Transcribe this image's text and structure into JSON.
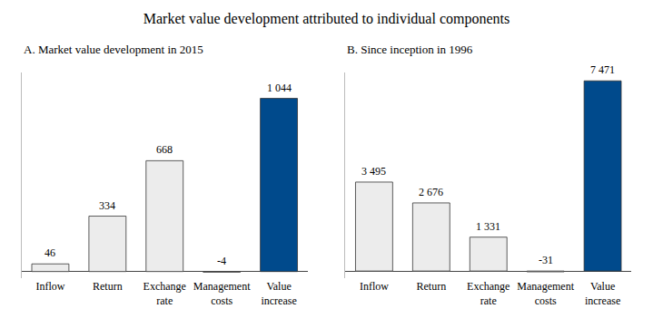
{
  "title": "Market value development attributed to individual components",
  "chart_data": [
    {
      "type": "bar",
      "title": "A. Market value development in 2015",
      "categories": [
        "Inflow",
        "Return",
        "Exchange rate",
        "Management costs",
        "Value increase"
      ],
      "values": [
        46,
        334,
        668,
        -4,
        1044
      ],
      "value_labels": [
        "46",
        "334",
        "668",
        "-4",
        "1 044"
      ],
      "colors": [
        "#ececec",
        "#ececec",
        "#ececec",
        "#ececec",
        "#004a8c"
      ],
      "ylim": [
        -40,
        1200
      ],
      "data_labels": true,
      "tick_labels": "x",
      "grid": false
    },
    {
      "type": "bar",
      "title": "B. Since inception in 1996",
      "categories": [
        "Inflow",
        "Return",
        "Exchange rate",
        "Management costs",
        "Value increase"
      ],
      "values": [
        3495,
        2676,
        1331,
        -31,
        7471
      ],
      "value_labels": [
        "3 495",
        "2 676",
        "1 331",
        "-31",
        "7 471"
      ],
      "colors": [
        "#ececec",
        "#ececec",
        "#ececec",
        "#ececec",
        "#004a8c"
      ],
      "ylim": [
        -280,
        7800
      ],
      "data_labels": true,
      "tick_labels": "x",
      "grid": false
    }
  ]
}
